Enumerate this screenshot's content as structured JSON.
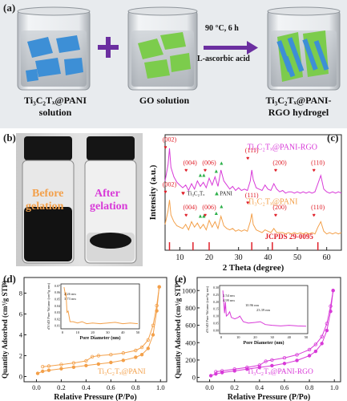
{
  "figure": {
    "panels": {
      "a": {
        "label": "(a)",
        "beaker1_caption": [
          "Ti₃C₂Tₓ@PANI",
          "solution"
        ],
        "beaker2_caption": "GO solution",
        "beaker3_caption": [
          "Ti₃C₂Tₓ@PANI-",
          "RGO hydrogel"
        ],
        "arrow_top": "90 °C,  6 h",
        "arrow_bottom": "L-ascorbic acid"
      },
      "b": {
        "label": "(b)",
        "vial1_text": [
          "Before",
          "gelation"
        ],
        "vial2_text": [
          "After",
          "gelation"
        ]
      },
      "c": {
        "label": "(c)"
      },
      "d": {
        "label": "(d)"
      },
      "e": {
        "label": "(e)"
      }
    },
    "colors": {
      "pani_orange": "#f3a04a",
      "rgo_magenta": "#d83ad8",
      "arrow_purple": "#6b2fa0",
      "marker_red": "#e0202a",
      "marker_green": "#2db04a",
      "mxene_blue": "#3d8fd6",
      "go_green": "#7ccc4c"
    }
  },
  "chart_data": [
    {
      "panel": "c",
      "type": "line",
      "xlabel": "2 Theta (degree)",
      "ylabel": "Intensity (a.u.)",
      "xlim": [
        5,
        65
      ],
      "xticks": [
        10,
        20,
        30,
        40,
        50,
        60
      ],
      "series": [
        {
          "name": "Ti₃C₂Tₓ@PANI-RGO",
          "color": "#d83ad8",
          "x": [
            5,
            6,
            6.5,
            7,
            8,
            9,
            10,
            11,
            12,
            13,
            14,
            15,
            16,
            17,
            18,
            19,
            20,
            21,
            22,
            23,
            24,
            25,
            26,
            27,
            28,
            29,
            30,
            31,
            32,
            33,
            34,
            34.5,
            35,
            36,
            37,
            38,
            39,
            40,
            41,
            42,
            43,
            44,
            45,
            46,
            47,
            48,
            49,
            50,
            51,
            52,
            53,
            54,
            55,
            56,
            57,
            58,
            59,
            60,
            61,
            62,
            63,
            64,
            65
          ],
          "y": [
            4.6,
            5.8,
            7.0,
            5.6,
            4.9,
            4.5,
            4.3,
            4.1,
            4.3,
            3.9,
            4.4,
            4.0,
            4.6,
            4.2,
            4.5,
            4.1,
            4.8,
            4.3,
            4.9,
            4.2,
            5.4,
            4.6,
            4.3,
            4.0,
            4.2,
            3.9,
            4.1,
            3.9,
            4.0,
            3.9,
            4.6,
            5.4,
            4.7,
            4.1,
            4.0,
            3.9,
            4.3,
            4.0,
            3.9,
            4.4,
            4.0,
            3.8,
            3.9,
            3.7,
            3.8,
            3.8,
            3.7,
            3.8,
            3.7,
            3.8,
            3.7,
            3.8,
            3.7,
            3.8,
            4.4,
            5.0,
            4.0,
            3.8,
            3.7,
            3.8,
            3.7,
            3.8,
            3.7
          ]
        },
        {
          "name": "Ti₃C₂Tₓ@PANI",
          "color": "#f3a04a",
          "x": [
            5,
            6,
            6.5,
            7,
            8,
            9,
            10,
            11,
            12,
            13,
            14,
            15,
            16,
            17,
            18,
            19,
            20,
            21,
            22,
            23,
            24,
            25,
            26,
            27,
            28,
            29,
            30,
            31,
            32,
            33,
            34,
            34.5,
            35,
            36,
            37,
            38,
            39,
            40,
            41,
            42,
            43,
            44,
            45,
            46,
            47,
            48,
            49,
            50,
            51,
            52,
            53,
            54,
            55,
            56,
            57,
            58,
            59,
            60,
            61,
            62,
            63,
            64,
            65
          ],
          "y": [
            1.4,
            2.4,
            3.2,
            2.1,
            1.6,
            1.3,
            1.2,
            1.1,
            1.4,
            1.0,
            1.6,
            1.2,
            1.5,
            1.1,
            1.4,
            1.0,
            1.7,
            1.2,
            1.6,
            1.1,
            2.0,
            1.3,
            1.1,
            1.0,
            1.1,
            0.9,
            1.0,
            0.9,
            1.0,
            0.9,
            1.6,
            2.2,
            1.4,
            1.0,
            0.9,
            0.8,
            1.0,
            0.9,
            0.8,
            1.1,
            0.8,
            0.8,
            0.8,
            0.7,
            0.8,
            0.7,
            0.8,
            0.7,
            0.8,
            0.7,
            0.8,
            0.7,
            0.8,
            0.7,
            1.2,
            1.6,
            0.9,
            0.7,
            0.8,
            0.7,
            0.8,
            0.7,
            0.8
          ]
        }
      ],
      "ylim": [
        -0.5,
        8
      ],
      "annotations_rgo": [
        {
          "text": "(002)",
          "x": 6.5
        },
        {
          "text": "(004)",
          "x": 13.5
        },
        {
          "text": "(006)",
          "x": 20
        },
        {
          "text": "(111)",
          "x": 34.5
        },
        {
          "text": "(200)",
          "x": 44
        },
        {
          "text": "(110)",
          "x": 57
        }
      ],
      "annotations_pani": [
        {
          "text": "(002)",
          "x": 6.5
        },
        {
          "text": "(004)",
          "x": 13.5
        },
        {
          "text": "(006)",
          "x": 20
        },
        {
          "text": "(111)",
          "x": 34.5
        },
        {
          "text": "(200)",
          "x": 44
        },
        {
          "text": "(110)",
          "x": 57
        }
      ],
      "legend_mid": [
        "Ti₃C₂Tₓ",
        "PANI"
      ],
      "reference_label": "JCPDS 29-0095",
      "reference_lines_x": [
        6.5,
        14.5,
        20,
        34.5,
        41.5,
        57
      ]
    },
    {
      "panel": "d",
      "type": "line",
      "xlabel": "Relative Pressure (P/Po)",
      "ylabel": "Quantity Adsorbed (cm³/g STP)",
      "xlim": [
        -0.1,
        1.05
      ],
      "ylim": [
        -0.5,
        9.5
      ],
      "xticks": [
        0.0,
        0.2,
        0.4,
        0.6,
        0.8,
        1.0
      ],
      "yticks": [
        0,
        2,
        4,
        6,
        8
      ],
      "legend": "Ti₃C₂Tₓ@PANI",
      "series": [
        {
          "name": "adsorption",
          "x": [
            0.01,
            0.05,
            0.1,
            0.2,
            0.3,
            0.4,
            0.5,
            0.6,
            0.7,
            0.8,
            0.85,
            0.9,
            0.94,
            0.97,
            0.99
          ],
          "y": [
            0.3,
            0.5,
            0.6,
            0.75,
            0.9,
            1.05,
            1.2,
            1.35,
            1.55,
            1.85,
            2.1,
            2.7,
            4.0,
            6.3,
            8.6
          ]
        },
        {
          "name": "desorption",
          "x": [
            0.99,
            0.97,
            0.94,
            0.9,
            0.85,
            0.8,
            0.7,
            0.6,
            0.5,
            0.45,
            0.4,
            0.3,
            0.2,
            0.1,
            0.05
          ],
          "y": [
            8.6,
            6.8,
            4.9,
            3.5,
            2.8,
            2.5,
            2.25,
            2.1,
            2.0,
            1.9,
            1.5,
            1.3,
            1.15,
            1.0,
            0.95
          ]
        }
      ],
      "inset": {
        "xlabel": "Pore Diameter (nm)",
        "ylabel": "dV/dD Pore Volume (cm³/g·nm)",
        "xticks": [
          0,
          10,
          20,
          30,
          40,
          50
        ],
        "yticks": [
          0.01,
          0.02,
          0.03,
          0.04,
          0.05,
          0.06,
          0.07
        ],
        "peak_labels": [
          "2.26 nm",
          "3.73 nm"
        ],
        "x": [
          1,
          2,
          2.3,
          3,
          3.7,
          5,
          7,
          10,
          13,
          16,
          20,
          25,
          30,
          35,
          40,
          45,
          50
        ],
        "y": [
          0.068,
          0.055,
          0.06,
          0.03,
          0.032,
          0.016,
          0.016,
          0.014,
          0.016,
          0.013,
          0.014,
          0.013,
          0.014,
          0.015,
          0.013,
          0.014,
          0.013
        ]
      }
    },
    {
      "panel": "e",
      "type": "line",
      "xlabel": "Relative Pressure (P/Po)",
      "ylabel": "Quantity Adsorbed (cm³/g STP)",
      "xlim": [
        -0.1,
        1.05
      ],
      "ylim": [
        -50,
        1150
      ],
      "xticks": [
        0.0,
        0.2,
        0.4,
        0.6,
        0.8,
        1.0
      ],
      "yticks": [
        0,
        200,
        400,
        600,
        800,
        1000
      ],
      "legend": "Ti₃C₂Tₓ@PANI-RGO",
      "series": [
        {
          "name": "adsorption",
          "x": [
            0.01,
            0.05,
            0.1,
            0.2,
            0.3,
            0.4,
            0.5,
            0.6,
            0.7,
            0.8,
            0.85,
            0.9,
            0.94,
            0.97,
            0.99
          ],
          "y": [
            20,
            40,
            55,
            75,
            95,
            115,
            135,
            160,
            195,
            250,
            300,
            390,
            540,
            760,
            1000
          ]
        },
        {
          "name": "desorption",
          "x": [
            0.99,
            0.97,
            0.94,
            0.9,
            0.85,
            0.8,
            0.7,
            0.6,
            0.5,
            0.45,
            0.4,
            0.3,
            0.2,
            0.1,
            0.05
          ],
          "y": [
            1000,
            820,
            620,
            470,
            380,
            320,
            260,
            225,
            200,
            185,
            140,
            115,
            95,
            75,
            65
          ]
        }
      ],
      "inset": {
        "xlabel": "Pore Diameter (nm)",
        "ylabel": "dV/dD Pore Volume (cm³/g·nm)",
        "xticks": [
          0,
          10,
          20,
          30,
          40,
          50
        ],
        "yticks": [
          0.0,
          0.05,
          0.1,
          0.15,
          0.2,
          0.25,
          0.3
        ],
        "peak_labels": [
          "2.54 nm",
          "4.99 nm",
          "10.96 nm",
          "23.39 nm"
        ],
        "x": [
          1,
          2,
          2.5,
          3,
          4,
          5,
          6,
          8,
          10,
          11,
          13,
          16,
          20,
          23,
          26,
          30,
          35,
          40,
          45,
          50
        ],
        "y": [
          0.28,
          0.12,
          0.2,
          0.1,
          0.11,
          0.13,
          0.09,
          0.08,
          0.09,
          0.1,
          0.06,
          0.05,
          0.055,
          0.06,
          0.04,
          0.035,
          0.03,
          0.035,
          0.03,
          0.028
        ]
      }
    }
  ]
}
